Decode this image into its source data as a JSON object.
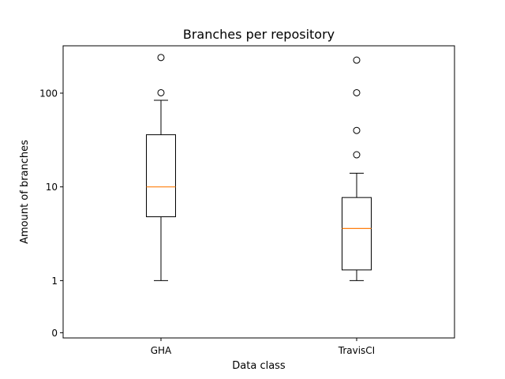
{
  "chart_data": {
    "type": "box",
    "title": "Branches per repository",
    "xlabel": "Data class",
    "ylabel": "Amount of branches",
    "yscale": "symlog",
    "ylim": [
      -0.1,
      320
    ],
    "yticks": [
      {
        "value": 0,
        "label": "0"
      },
      {
        "value": 1,
        "label": "1"
      },
      {
        "value": 10,
        "label": "10"
      },
      {
        "value": 100,
        "label": "100"
      }
    ],
    "categories": [
      "GHA",
      "TravisCI"
    ],
    "boxes": [
      {
        "name": "GHA",
        "whisker_low": 1,
        "q1": 4.8,
        "median": 10,
        "q3": 36,
        "whisker_high": 84,
        "outliers": [
          101,
          240
        ]
      },
      {
        "name": "TravisCI",
        "whisker_low": 1,
        "q1": 1.3,
        "median": 3.6,
        "q3": 7.7,
        "whisker_high": 14,
        "outliers": [
          22,
          40,
          101,
          225
        ]
      }
    ],
    "grid": false,
    "colors": {
      "median": "#ff7f0e",
      "box": "#000000"
    }
  }
}
